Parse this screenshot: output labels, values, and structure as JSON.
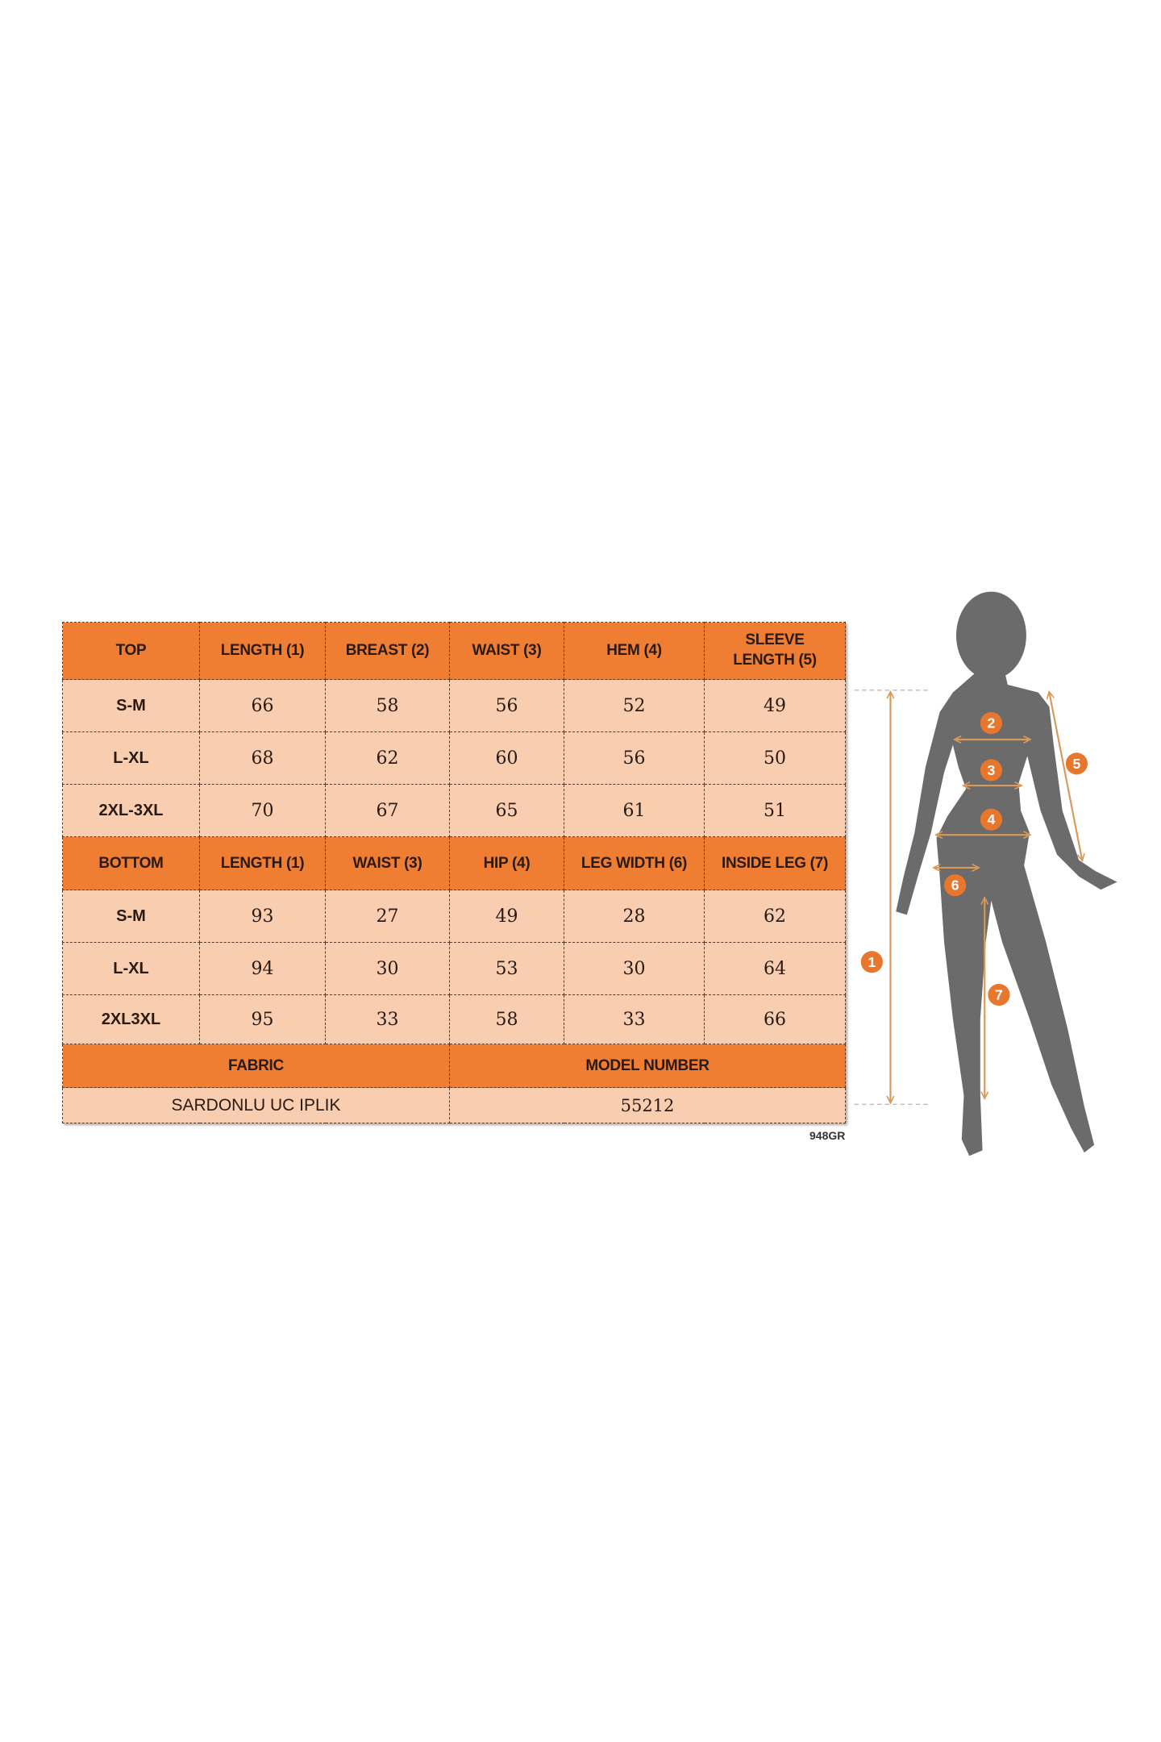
{
  "top_table": {
    "headers": [
      "TOP",
      "LENGTH (1)",
      "BREAST (2)",
      "WAIST (3)",
      "HEM (4)",
      "SLEEVE LENGTH (5)"
    ],
    "rows": [
      [
        "S-M",
        "66",
        "58",
        "56",
        "52",
        "49"
      ],
      [
        "L-XL",
        "68",
        "62",
        "60",
        "56",
        "50"
      ],
      [
        "2XL-3XL",
        "70",
        "67",
        "65",
        "61",
        "51"
      ]
    ]
  },
  "bottom_table": {
    "headers": [
      "BOTTOM",
      "LENGTH (1)",
      "WAIST (3)",
      "HIP (4)",
      "LEG WIDTH (6)",
      "INSIDE LEG (7)"
    ],
    "rows": [
      [
        "S-M",
        "93",
        "27",
        "49",
        "28",
        "62"
      ],
      [
        "L-XL",
        "94",
        "30",
        "53",
        "30",
        "64"
      ],
      [
        "2XL3XL",
        "95",
        "33",
        "58",
        "33",
        "66"
      ]
    ]
  },
  "footer": {
    "fabric_label": "FABRIC",
    "model_number_label": "MODEL NUMBER",
    "fabric_value": "SARDONLU UC IPLIK",
    "model_number_value": "55212"
  },
  "footnote": "948GR",
  "figure": {
    "markers": [
      "1",
      "2",
      "3",
      "4",
      "5",
      "6",
      "7"
    ]
  },
  "colors": {
    "header_orange": "#ef7d32",
    "cell_peach": "#f8cdb0",
    "silhouette_gray": "#6b6b6b",
    "marker_orange": "#e8772e",
    "arrow_tan": "#d9995a"
  }
}
